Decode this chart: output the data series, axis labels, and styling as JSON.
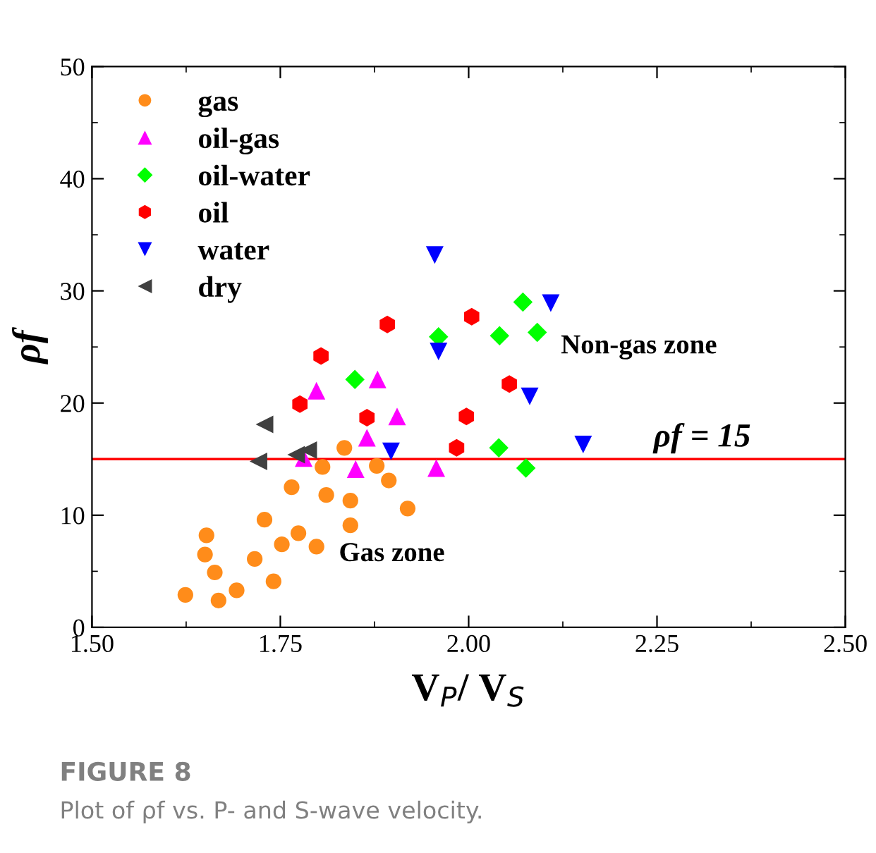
{
  "chart_data": {
    "type": "scatter",
    "xlabel": "V$_{P}$/ V$_{S}$",
    "ylabel": "ρf",
    "xlim": [
      1.5,
      2.5
    ],
    "xticks": [
      {
        "value": 1.5,
        "label": "1.50"
      },
      {
        "value": 1.75,
        "label": "1.75"
      },
      {
        "value": 2.0,
        "label": "2.00"
      },
      {
        "value": 2.25,
        "label": "2.25"
      },
      {
        "value": 2.5,
        "label": "2.50"
      }
    ],
    "ylim": [
      0,
      50
    ],
    "yticks": [
      0,
      10,
      20,
      30,
      40,
      50
    ],
    "grid": false,
    "legend": "top left",
    "series": [
      {
        "name": "gas",
        "color": "#ff8c1a",
        "marker": "circle",
        "x": [
          1.624,
          1.668,
          1.692,
          1.663,
          1.65,
          1.652,
          1.716,
          1.741,
          1.729,
          1.752,
          1.774,
          1.798,
          1.765,
          1.811,
          1.806,
          1.835,
          1.843,
          1.843,
          1.878,
          1.894,
          1.919
        ],
        "values": [
          2.9,
          2.4,
          3.3,
          4.9,
          6.5,
          8.2,
          6.1,
          4.1,
          9.6,
          7.4,
          8.4,
          7.2,
          12.5,
          11.8,
          14.3,
          16.0,
          11.3,
          9.1,
          14.4,
          13.1,
          10.6
        ]
      },
      {
        "name": "oil-gas",
        "color": "#ff00ff",
        "marker": "triangle",
        "x": [
          1.798,
          1.879,
          1.905,
          1.865,
          1.781,
          1.85,
          1.957
        ],
        "values": [
          21.1,
          22.1,
          18.8,
          16.9,
          15.1,
          14.1,
          14.2
        ]
      },
      {
        "name": "oil-water",
        "color": "#00ff00",
        "marker": "diamond",
        "x": [
          1.849,
          1.96,
          2.072,
          2.041,
          2.091,
          2.04,
          2.076
        ],
        "values": [
          22.1,
          25.9,
          29.0,
          26.0,
          26.3,
          16.0,
          14.2
        ]
      },
      {
        "name": "oil",
        "color": "#ff0000",
        "x": [
          1.892,
          1.804,
          1.776,
          1.865,
          2.004,
          1.997,
          1.984,
          2.054
        ],
        "values": [
          27.0,
          24.2,
          19.9,
          18.7,
          27.7,
          18.8,
          16.0,
          21.7
        ]
      },
      {
        "name": "water",
        "color": "#0000ff",
        "marker": "triangle_down",
        "x": [
          1.955,
          1.96,
          2.109,
          2.081,
          2.152,
          1.897
        ],
        "values": [
          33.2,
          24.6,
          28.9,
          20.6,
          16.3,
          15.7
        ]
      },
      {
        "name": "dry",
        "color": "#404040",
        "marker": "triangle_left",
        "x": [
          1.729,
          1.721,
          1.771,
          1.787
        ],
        "values": [
          18.1,
          14.8,
          15.4,
          15.8
        ]
      }
    ],
    "ref_lines": [
      {
        "axis": "y",
        "value": 15,
        "label": "ρf = 15",
        "color": "#ff0000"
      }
    ],
    "annotations": [
      "Non-gas zone",
      "Gas zone",
      "FIGURE 8",
      "Plot of ρf vs. P- and S-wave velocity."
    ]
  }
}
